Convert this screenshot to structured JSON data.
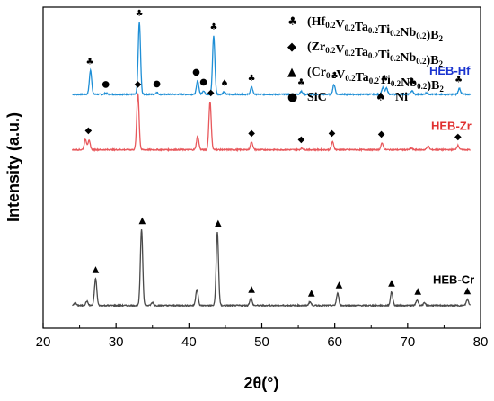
{
  "chart_data": {
    "type": "line",
    "xlabel": "2θ(°)",
    "ylabel": "Intensity (a.u.)",
    "xlim": [
      20,
      80
    ],
    "x_ticks": [
      20,
      30,
      40,
      50,
      60,
      70,
      80
    ],
    "y_ticks_shown": false,
    "legend_placement": "top-right",
    "legend": [
      {
        "symbol": "club",
        "glyph": "♣",
        "label": "(Hf0.2V0.2Ta0.2Ti0.2Nb0.2)B2",
        "parts": [
          {
            "t": "(Hf"
          },
          {
            "s": "0.2"
          },
          {
            "t": "V"
          },
          {
            "s": "0.2"
          },
          {
            "t": "Ta"
          },
          {
            "s": "0.2"
          },
          {
            "t": "Ti"
          },
          {
            "s": "0.2"
          },
          {
            "t": "Nb"
          },
          {
            "s": "0.2"
          },
          {
            "t": ")B"
          },
          {
            "s": "2"
          }
        ]
      },
      {
        "symbol": "diamond",
        "glyph": "◆",
        "label": "(Zr0.2V0.2Ta0.2Ti0.2Nb0.2)B2",
        "parts": [
          {
            "t": "(Zr"
          },
          {
            "s": "0.2"
          },
          {
            "t": "V"
          },
          {
            "s": "0.2"
          },
          {
            "t": "Ta"
          },
          {
            "s": "0.2"
          },
          {
            "t": "Ti"
          },
          {
            "s": "0.2"
          },
          {
            "t": "Nb"
          },
          {
            "s": "0.2"
          },
          {
            "t": ")B"
          },
          {
            "s": "2"
          }
        ]
      },
      {
        "symbol": "triangle",
        "glyph": "▲",
        "label": "(Cr0.2V0.2Ta0.2Ti0.2Nb0.2)B2",
        "parts": [
          {
            "t": "(Cr"
          },
          {
            "s": "0.2"
          },
          {
            "t": "V"
          },
          {
            "s": "0.2"
          },
          {
            "t": "Ta"
          },
          {
            "s": "0.2"
          },
          {
            "t": "Ti"
          },
          {
            "s": "0.2"
          },
          {
            "t": "Nb"
          },
          {
            "s": "0.2"
          },
          {
            "t": ")B"
          },
          {
            "s": "2"
          }
        ]
      },
      {
        "symbol": "circle",
        "glyph": "●",
        "label": "SiC",
        "parts": [
          {
            "t": "SiC"
          }
        ]
      },
      {
        "symbol": "spade",
        "glyph": "♠",
        "label": "Ni",
        "parts": [
          {
            "t": "Ni"
          }
        ]
      }
    ],
    "series": [
      {
        "name": "HEB-Hf",
        "color": "#1f8fd6",
        "label_color": "#1a34d0",
        "baseline": 0.745,
        "noise": 0.004,
        "peaks": [
          {
            "x": 26.5,
            "h": 0.08
          },
          {
            "x": 28.6,
            "h": 0.004
          },
          {
            "x": 33.2,
            "h": 0.24
          },
          {
            "x": 35.6,
            "h": 0.006
          },
          {
            "x": 41.2,
            "h": 0.045
          },
          {
            "x": 42.0,
            "h": 0.012
          },
          {
            "x": 43.4,
            "h": 0.195
          },
          {
            "x": 44.8,
            "h": 0.008
          },
          {
            "x": 48.6,
            "h": 0.024
          },
          {
            "x": 55.4,
            "h": 0.01
          },
          {
            "x": 59.9,
            "h": 0.033
          },
          {
            "x": 66.6,
            "h": 0.022
          },
          {
            "x": 67.1,
            "h": 0.02
          },
          {
            "x": 70.6,
            "h": 0.012
          },
          {
            "x": 72.6,
            "h": 0.006
          },
          {
            "x": 77.1,
            "h": 0.02
          }
        ],
        "markers": [
          {
            "x": 26.4,
            "symbol": "club"
          },
          {
            "x": 28.6,
            "symbol": "circle"
          },
          {
            "x": 33.2,
            "symbol": "club"
          },
          {
            "x": 35.6,
            "symbol": "circle"
          },
          {
            "x": 41.0,
            "symbol": "circle"
          },
          {
            "x": 42.0,
            "symbol": "circle"
          },
          {
            "x": 43.4,
            "symbol": "club"
          },
          {
            "x": 44.9,
            "symbol": "spade"
          },
          {
            "x": 48.6,
            "symbol": "club"
          },
          {
            "x": 55.4,
            "symbol": "club"
          },
          {
            "x": 60.0,
            "symbol": "club"
          },
          {
            "x": 66.8,
            "symbol": "club"
          },
          {
            "x": 70.6,
            "symbol": "club"
          },
          {
            "x": 77.0,
            "symbol": "club"
          }
        ]
      },
      {
        "name": "HEB-Zr",
        "color": "#e8585c",
        "label_color": "#e03030",
        "baseline": 0.56,
        "noise": 0.004,
        "peaks": [
          {
            "x": 25.8,
            "h": 0.034
          },
          {
            "x": 26.3,
            "h": 0.03
          },
          {
            "x": 33.0,
            "h": 0.19
          },
          {
            "x": 41.2,
            "h": 0.045
          },
          {
            "x": 42.9,
            "h": 0.16
          },
          {
            "x": 48.6,
            "h": 0.026
          },
          {
            "x": 55.5,
            "h": 0.005
          },
          {
            "x": 59.7,
            "h": 0.026
          },
          {
            "x": 66.5,
            "h": 0.022
          },
          {
            "x": 70.5,
            "h": 0.005
          },
          {
            "x": 72.8,
            "h": 0.012
          },
          {
            "x": 76.9,
            "h": 0.014
          }
        ],
        "markers": [
          {
            "x": 26.2,
            "symbol": "diamond"
          },
          {
            "x": 33.0,
            "symbol": "diamond"
          },
          {
            "x": 43.0,
            "symbol": "diamond"
          },
          {
            "x": 48.6,
            "symbol": "diamond"
          },
          {
            "x": 55.4,
            "symbol": "diamond"
          },
          {
            "x": 59.6,
            "symbol": "diamond"
          },
          {
            "x": 66.4,
            "symbol": "diamond"
          },
          {
            "x": 76.9,
            "symbol": "diamond"
          }
        ]
      },
      {
        "name": "HEB-Cr",
        "color": "#4a4a4a",
        "label_color": "#000000",
        "baseline": 0.04,
        "noise": 0.004,
        "peaks": [
          {
            "x": 24.4,
            "h": 0.008
          },
          {
            "x": 26.0,
            "h": 0.014
          },
          {
            "x": 27.2,
            "h": 0.09
          },
          {
            "x": 33.5,
            "h": 0.255
          },
          {
            "x": 35.0,
            "h": 0.01
          },
          {
            "x": 41.1,
            "h": 0.055
          },
          {
            "x": 43.9,
            "h": 0.245
          },
          {
            "x": 48.5,
            "h": 0.025
          },
          {
            "x": 56.6,
            "h": 0.012
          },
          {
            "x": 60.4,
            "h": 0.04
          },
          {
            "x": 67.8,
            "h": 0.045
          },
          {
            "x": 71.3,
            "h": 0.018
          },
          {
            "x": 72.3,
            "h": 0.008
          },
          {
            "x": 78.2,
            "h": 0.02
          }
        ],
        "markers": [
          {
            "x": 27.2,
            "symbol": "triangle"
          },
          {
            "x": 33.6,
            "symbol": "triangle"
          },
          {
            "x": 44.0,
            "symbol": "triangle"
          },
          {
            "x": 48.6,
            "symbol": "triangle"
          },
          {
            "x": 56.8,
            "symbol": "triangle"
          },
          {
            "x": 60.6,
            "symbol": "triangle"
          },
          {
            "x": 67.8,
            "symbol": "triangle"
          },
          {
            "x": 71.4,
            "symbol": "triangle"
          },
          {
            "x": 78.2,
            "symbol": "triangle"
          }
        ]
      }
    ]
  }
}
